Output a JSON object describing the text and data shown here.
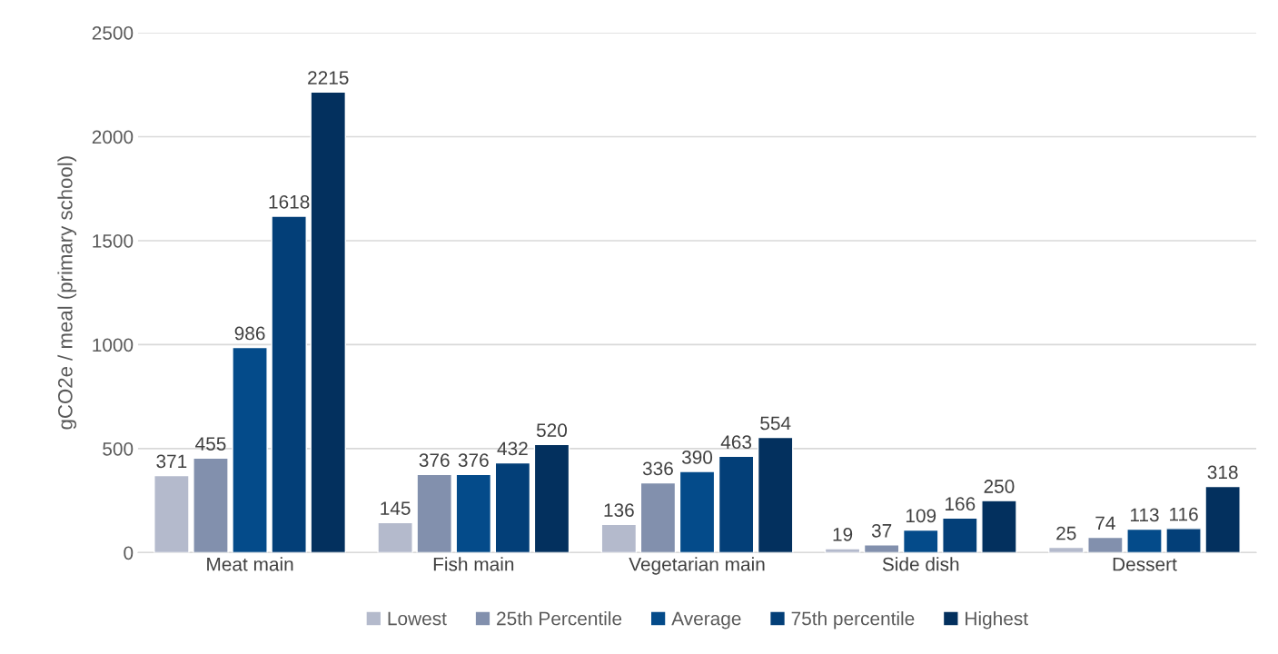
{
  "chart_data": {
    "type": "bar",
    "ylabel": "gCO2e / meal (primary school)",
    "categories": [
      "Meat main",
      "Fish main",
      "Vegetarian main",
      "Side dish",
      "Dessert"
    ],
    "series": [
      {
        "name": "Lowest",
        "color": "#b4bacc",
        "values": [
          371,
          145,
          136,
          19,
          25
        ]
      },
      {
        "name": "25th Percentile",
        "color": "#8290ad",
        "values": [
          455,
          376,
          336,
          37,
          74
        ]
      },
      {
        "name": "Average",
        "color": "#044b8a",
        "values": [
          986,
          376,
          390,
          109,
          113
        ]
      },
      {
        "name": "75th percentile",
        "color": "#033f78",
        "values": [
          1618,
          432,
          463,
          166,
          116
        ]
      },
      {
        "name": "Highest",
        "color": "#03305e",
        "values": [
          2215,
          520,
          554,
          250,
          318
        ]
      }
    ],
    "ylim": [
      0,
      2500
    ],
    "yticks": [
      0,
      500,
      1000,
      1500,
      2000,
      2500
    ],
    "grid": "y",
    "legend": "bottom",
    "data_labels": true
  }
}
